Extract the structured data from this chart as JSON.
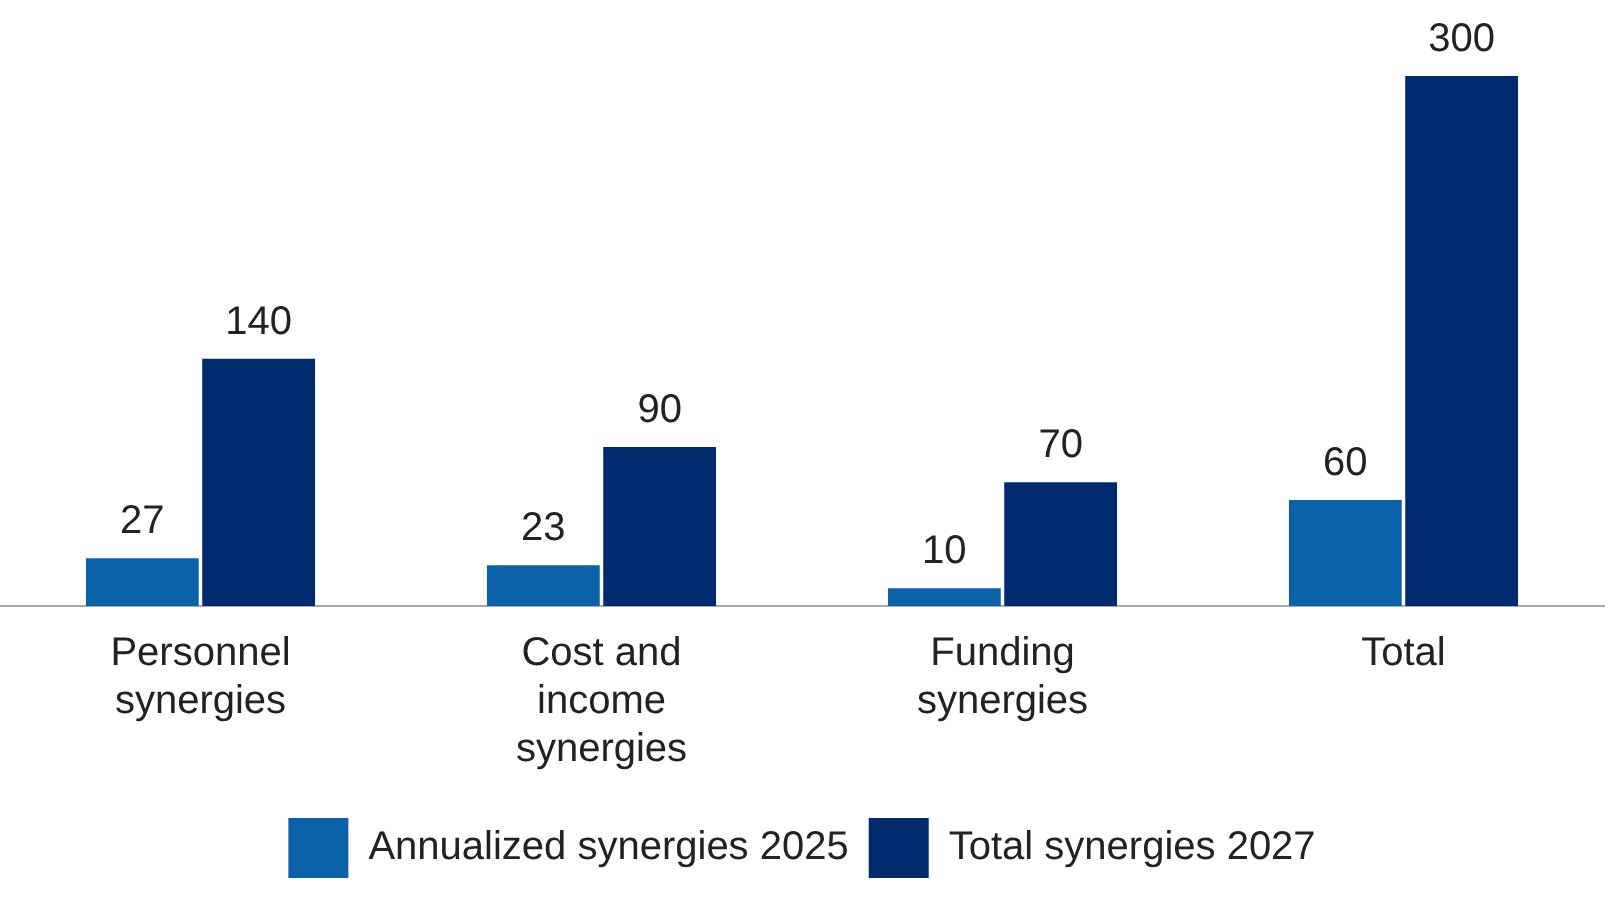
{
  "chart_data": {
    "type": "bar",
    "categories": [
      "Personnel synergies",
      "Cost and income synergies",
      "Funding synergies",
      "Total"
    ],
    "series": [
      {
        "name": "Annualized synergies 2025",
        "color": "#0b62a8",
        "values": [
          27,
          23,
          10,
          60
        ]
      },
      {
        "name": "Total synergies 2027",
        "color": "#00296e",
        "values": [
          140,
          90,
          70,
          300
        ]
      }
    ],
    "data_labels": true,
    "legend": "bottom",
    "grid": false
  }
}
